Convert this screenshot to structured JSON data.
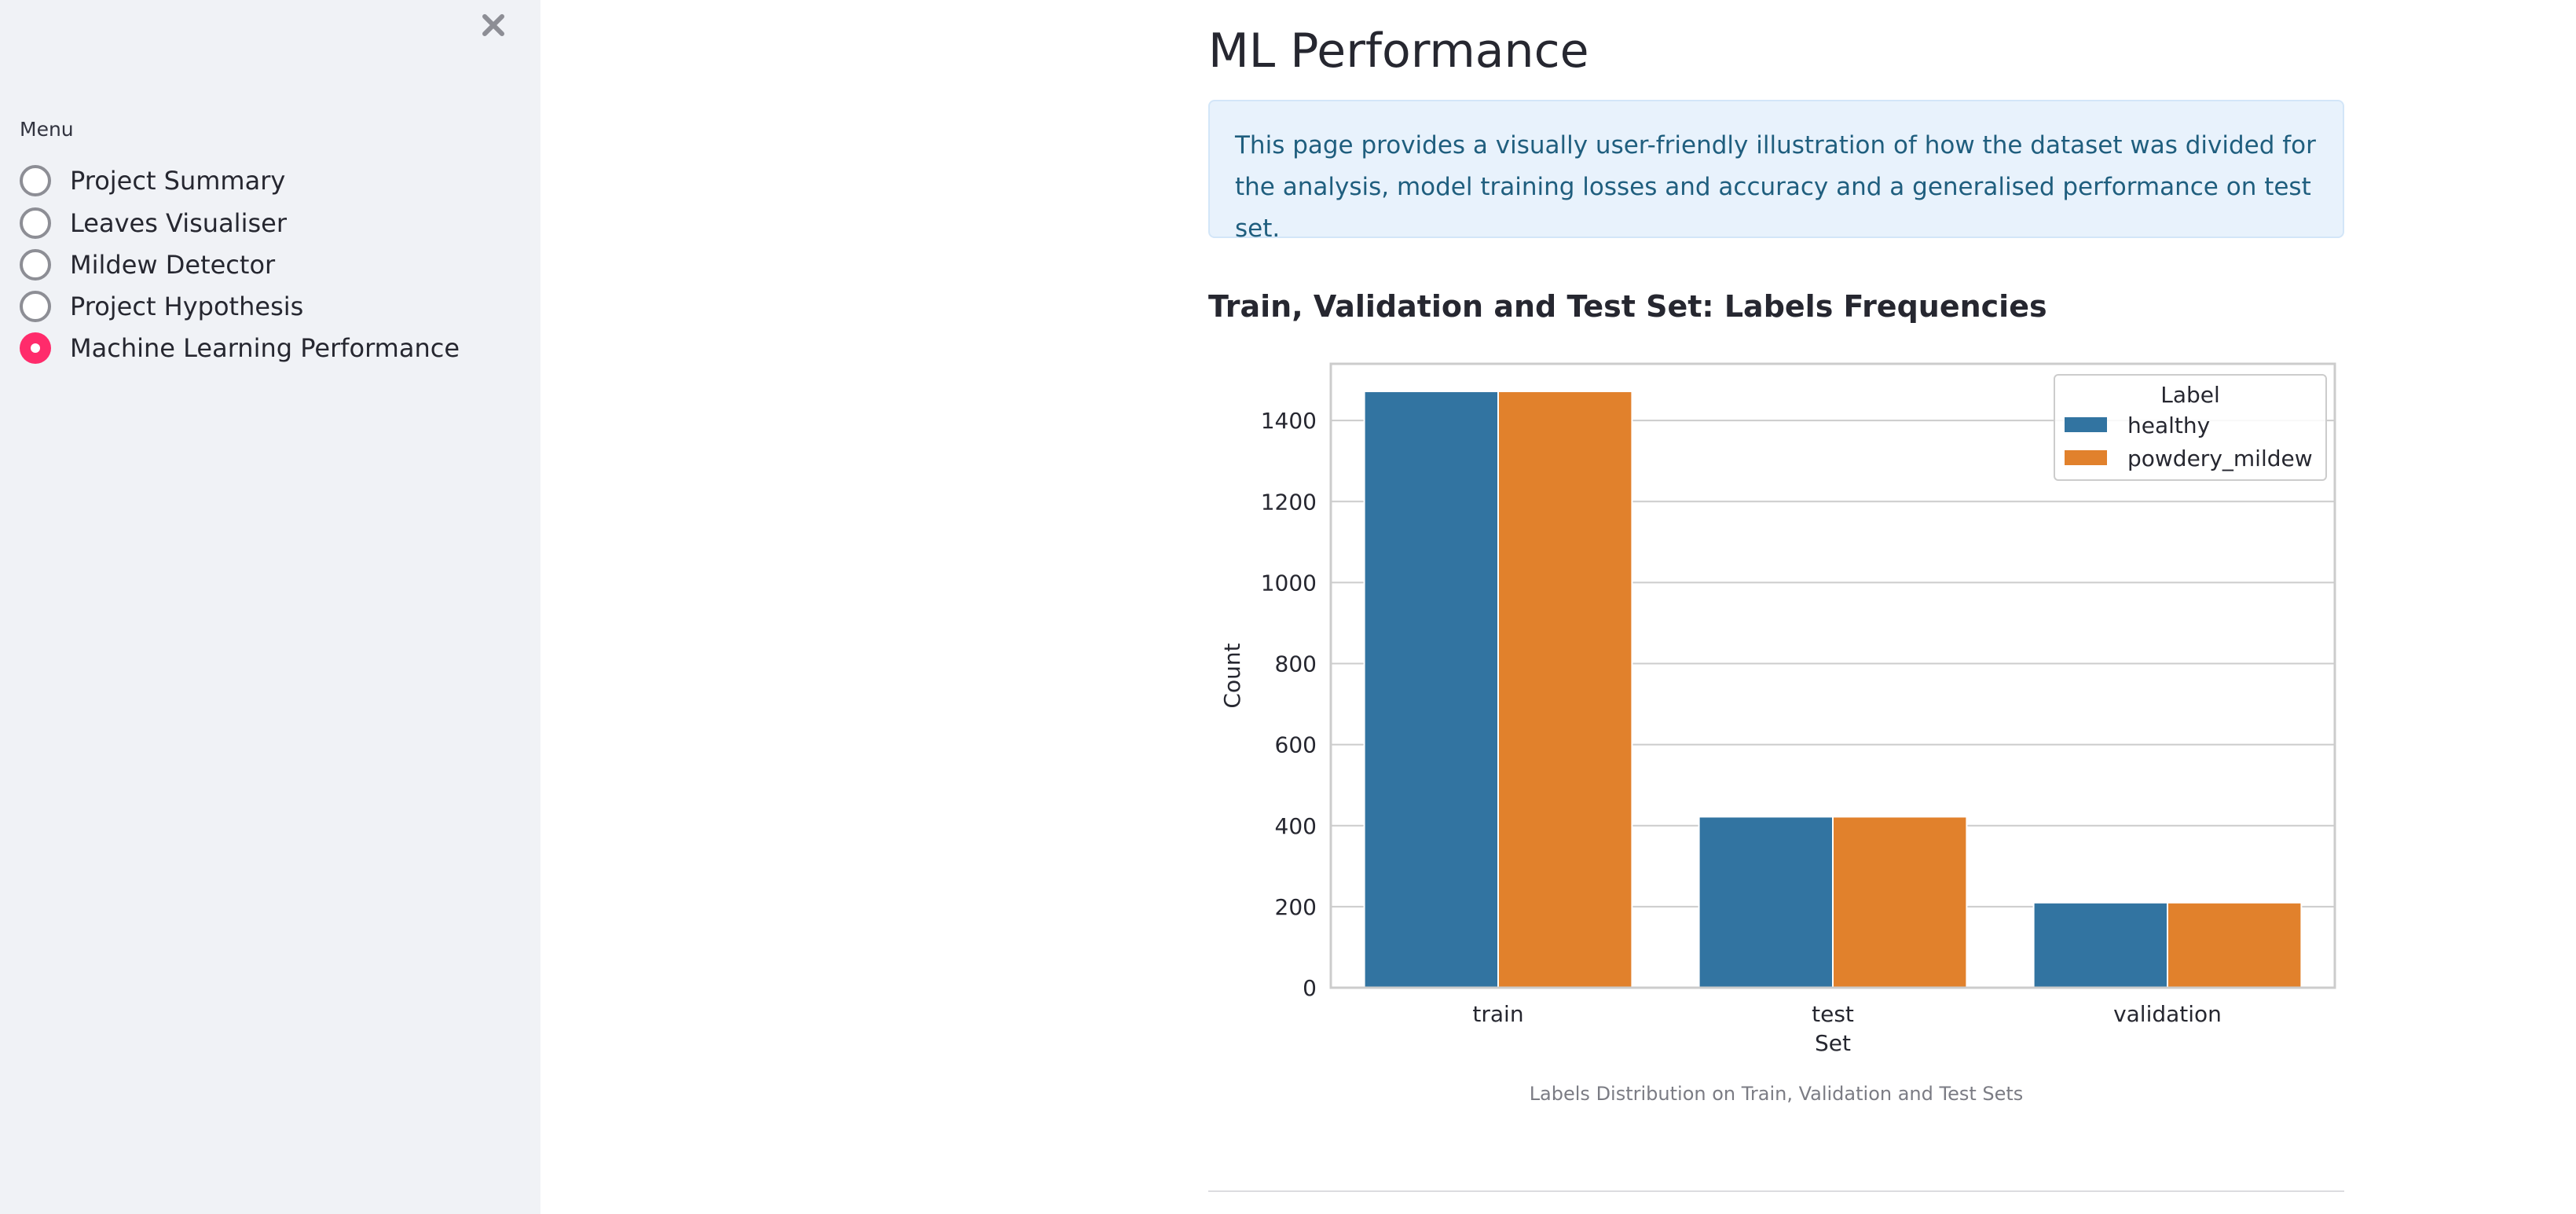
{
  "sidebar": {
    "menu_label": "Menu",
    "items": [
      {
        "label": "Project Summary",
        "selected": false
      },
      {
        "label": "Leaves Visualiser",
        "selected": false
      },
      {
        "label": "Mildew Detector",
        "selected": false
      },
      {
        "label": "Project Hypothesis",
        "selected": false
      },
      {
        "label": "Machine Learning Performance",
        "selected": true
      }
    ],
    "close_icon": "close-icon",
    "accent_color": "#ff2b6b"
  },
  "main": {
    "title": "ML Performance",
    "info_text": "This page provides a visually user-friendly illustration of how the dataset was divided for the analysis, model training losses and accuracy and a generalised performance on test set.",
    "section_heading": "Train, Validation and Test Set: Labels Frequencies",
    "chart_caption": "Labels Distribution on Train, Validation and Test Sets"
  },
  "chart_data": {
    "type": "bar",
    "categories": [
      "train",
      "test",
      "validation"
    ],
    "series": [
      {
        "name": "healthy",
        "color": "#3274a1",
        "values": [
          1472,
          422,
          210
        ]
      },
      {
        "name": "powdery_mildew",
        "color": "#e1812c",
        "values": [
          1472,
          422,
          210
        ]
      }
    ],
    "xlabel": "Set",
    "ylabel": "Count",
    "ylim": [
      0,
      1540
    ],
    "yticks": [
      0,
      200,
      400,
      600,
      800,
      1000,
      1200,
      1400
    ],
    "grid": true,
    "legend_title": "Label",
    "legend_position": "top-right"
  }
}
